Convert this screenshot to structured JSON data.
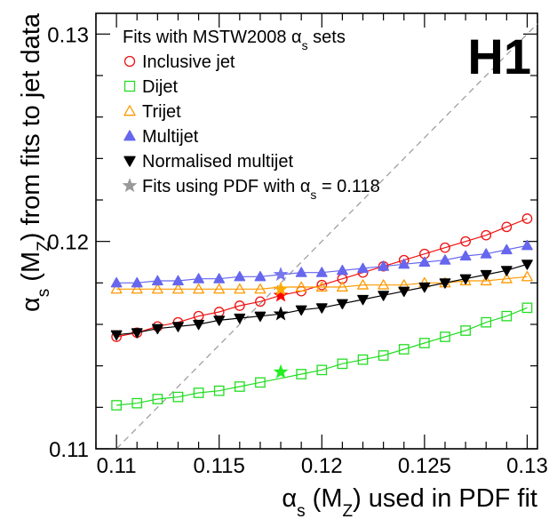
{
  "chart_data": {
    "type": "scatter",
    "experiment_label": "H1",
    "legend_header": {
      "prefix": "Fits with MSTW2008 ",
      "alpha": "α",
      "sub": "s",
      "suffix": " sets"
    },
    "xlabel": {
      "alpha": "α",
      "sub": "s",
      "mid": " (M",
      "sub2": "Z",
      "suffix": ") used in PDF fit"
    },
    "ylabel": {
      "alpha": "α",
      "sub": "s",
      "mid": " (M",
      "sub2": "Z",
      "suffix": ")  from  fits to jet data"
    },
    "xlim": [
      0.109,
      0.1305
    ],
    "ylim": [
      0.11,
      0.131
    ],
    "x_ticks": [
      "0.11",
      "0.115",
      "0.12",
      "0.125",
      "0.13"
    ],
    "x_tick_values": [
      0.11,
      0.115,
      0.12,
      0.125,
      0.13
    ],
    "y_ticks": [
      "0.11",
      "0.12",
      "0.13"
    ],
    "y_tick_values": [
      0.11,
      0.12,
      0.13
    ],
    "diagonal": "y = x (dashed grey)",
    "x": [
      0.11,
      0.111,
      0.112,
      0.113,
      0.114,
      0.115,
      0.116,
      0.117,
      0.118,
      0.119,
      0.12,
      0.121,
      0.122,
      0.123,
      0.124,
      0.125,
      0.126,
      0.127,
      0.128,
      0.129,
      0.13
    ],
    "series": [
      {
        "name": "Inclusive jet",
        "marker": "open-circle",
        "color": "#ee1111",
        "values": [
          0.1154,
          0.1156,
          0.1159,
          0.1161,
          0.1164,
          0.1166,
          0.1169,
          0.1171,
          0.1174,
          0.1176,
          0.1179,
          0.1182,
          0.1185,
          0.1188,
          0.1191,
          0.1194,
          0.1197,
          0.12,
          0.1203,
          0.1207,
          0.1211
        ]
      },
      {
        "name": "Dijet",
        "marker": "open-square",
        "color": "#22dd22",
        "values": [
          0.1121,
          0.1122,
          0.1124,
          0.1125,
          0.1127,
          0.1128,
          0.113,
          0.1132,
          0.1134,
          0.1136,
          0.1138,
          0.1141,
          0.1143,
          0.1145,
          0.1148,
          0.1151,
          0.1154,
          0.1157,
          0.1161,
          0.1164,
          0.1168
        ]
      },
      {
        "name": "Trijet",
        "marker": "open-triangle-up",
        "color": "#ff9900",
        "values": [
          0.1177,
          0.1177,
          0.1177,
          0.1177,
          0.1177,
          0.1177,
          0.1177,
          0.1177,
          0.1178,
          0.1178,
          0.1178,
          0.1178,
          0.1179,
          0.1179,
          0.1179,
          0.118,
          0.118,
          0.1181,
          0.1181,
          0.1182,
          0.1183
        ]
      },
      {
        "name": "Multijet",
        "marker": "filled-triangle-up",
        "color": "#6666ee",
        "values": [
          0.118,
          0.118,
          0.1181,
          0.1181,
          0.1182,
          0.1182,
          0.1183,
          0.1183,
          0.1184,
          0.1185,
          0.1185,
          0.1186,
          0.1187,
          0.1188,
          0.1189,
          0.119,
          0.1191,
          0.1193,
          0.1194,
          0.1196,
          0.1198
        ]
      },
      {
        "name": "Normalised multijet",
        "marker": "filled-triangle-down",
        "color": "#000000",
        "values": [
          0.1155,
          0.1156,
          0.1158,
          0.1159,
          0.116,
          0.1162,
          0.1163,
          0.1164,
          0.1165,
          0.1167,
          0.1168,
          0.117,
          0.1172,
          0.1174,
          0.1176,
          0.1178,
          0.118,
          0.1182,
          0.1184,
          0.1186,
          0.1189
        ]
      }
    ],
    "pdf_0118_fits": {
      "legend": {
        "prefix": "Fits using PDF with ",
        "alpha": "α",
        "sub": "s",
        "suffix": " = 0.118"
      },
      "marker": "star",
      "legend_color": "#999999",
      "points": [
        {
          "series": "Inclusive jet",
          "x": 0.118,
          "y": 0.1174,
          "color": "#ff0000"
        },
        {
          "series": "Dijet",
          "x": 0.118,
          "y": 0.1137,
          "color": "#22ee22"
        },
        {
          "series": "Trijet",
          "x": 0.118,
          "y": 0.1177,
          "color": "#ffaa00"
        },
        {
          "series": "Multijet",
          "x": 0.118,
          "y": 0.1184,
          "color": "#7777ee"
        },
        {
          "series": "Normalised multijet",
          "x": 0.118,
          "y": 0.1165,
          "color": "#000000"
        }
      ]
    }
  }
}
